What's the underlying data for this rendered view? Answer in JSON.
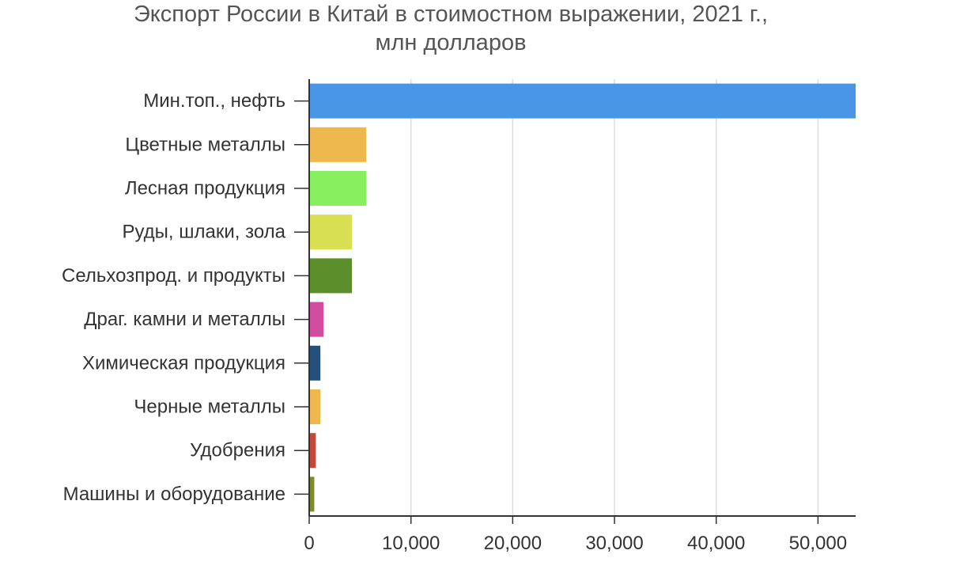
{
  "chart_data": {
    "type": "bar",
    "orientation": "horizontal",
    "title_line1": "Экспорт России в Китай в стоимостном выражении, 2021 г.,",
    "title_line2": "млн долларов",
    "xlabel": "",
    "ylabel": "",
    "categories": [
      "Мин.топ., нефть",
      "Цветные металлы",
      "Лесная продукция",
      "Руды, шлаки, зола",
      "Сельхозпрод. и продукты",
      "Драг. камни и металлы",
      "Химическая продукция",
      "Черные металлы",
      "Удобрения",
      "Машины и оборудование"
    ],
    "values": [
      53700,
      5600,
      5600,
      4200,
      4200,
      1400,
      1100,
      1100,
      650,
      500
    ],
    "colors": [
      "#4a96e6",
      "#eeb84f",
      "#88ef5f",
      "#d9df52",
      "#5c8f2c",
      "#d24da0",
      "#254f7c",
      "#eeb84f",
      "#c4473a",
      "#7d8a2d"
    ],
    "xlim": [
      0,
      53700
    ],
    "xticks": [
      0,
      10000,
      20000,
      30000,
      40000,
      50000
    ],
    "xtick_labels": [
      "0",
      "10,000",
      "20,000",
      "30,000",
      "40,000",
      "50,000"
    ],
    "grid": true,
    "legend": "none"
  }
}
